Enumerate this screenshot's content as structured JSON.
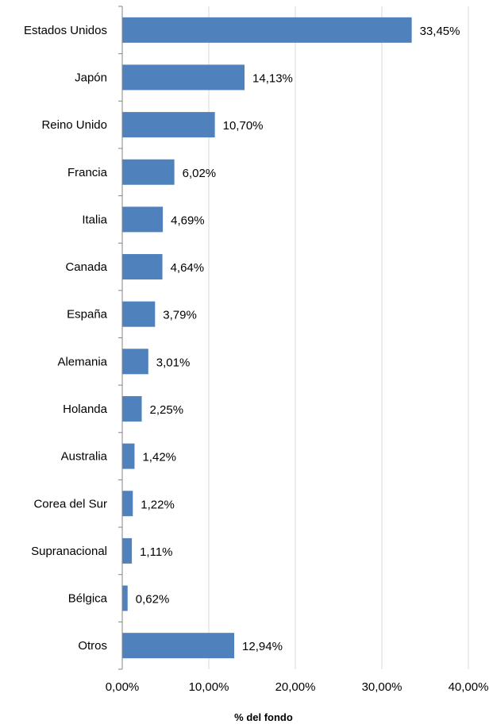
{
  "chart_data": {
    "type": "bar",
    "orientation": "horizontal",
    "categories": [
      "Estados Unidos",
      "Japón",
      "Reino Unido",
      "Francia",
      "Italia",
      "Canada",
      "España",
      "Alemania",
      "Holanda",
      "Australia",
      "Corea del Sur",
      "Supranacional",
      "Bélgica",
      "Otros"
    ],
    "values": [
      33.45,
      14.13,
      10.7,
      6.02,
      4.69,
      4.64,
      3.79,
      3.01,
      2.25,
      1.42,
      1.22,
      1.11,
      0.62,
      12.94
    ],
    "data_labels": [
      "33,45%",
      "14,13%",
      "10,70%",
      "6,02%",
      "4,69%",
      "4,64%",
      "3,79%",
      "3,01%",
      "2,25%",
      "1,42%",
      "1,22%",
      "1,11%",
      "0,62%",
      "12,94%"
    ],
    "xlabel": "% del fondo",
    "xlim": [
      0,
      40
    ],
    "xticks": [
      0,
      10,
      20,
      30,
      40
    ],
    "xtick_labels": [
      "0,00%",
      "10,00%",
      "20,00%",
      "30,00%",
      "40,00%"
    ],
    "grid": "vertical",
    "legend": "none",
    "bar_color": "#4f81bd"
  }
}
